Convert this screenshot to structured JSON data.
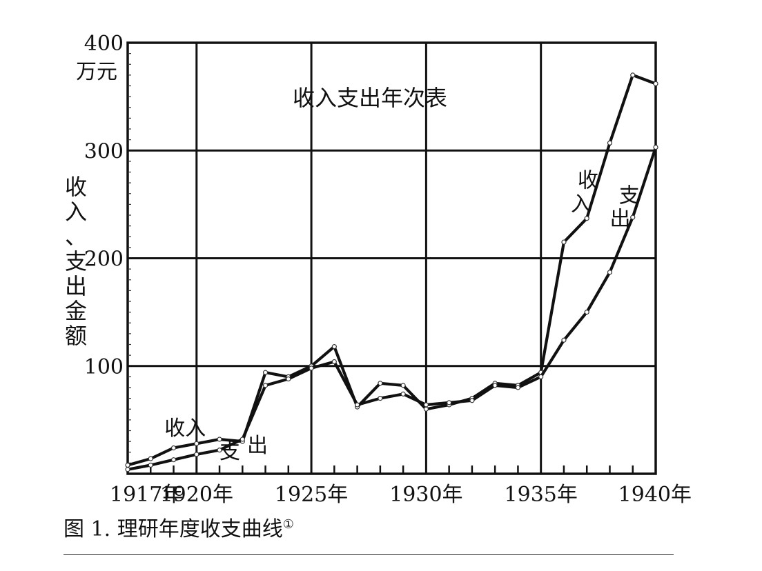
{
  "caption": {
    "prefix": "图 1.",
    "title": "理研年度收支曲线",
    "footnote": "①"
  },
  "chart_data": {
    "type": "line",
    "title": "收入支出年次表",
    "ylabel": "收入、支出金额",
    "yunit": "万元",
    "ylim": [
      0,
      400
    ],
    "y_ticks": [
      100,
      200,
      300,
      400
    ],
    "x_tick_labels": [
      "1917年",
      "1920年",
      "1925年",
      "1930年",
      "1935年",
      "1940年"
    ],
    "x_tick_values": [
      1917,
      1920,
      1925,
      1930,
      1935,
      1940
    ],
    "x_minor_ticks": [
      1918,
      1919,
      1921,
      1922,
      1923,
      1924,
      1926,
      1927,
      1928,
      1929,
      1931,
      1932,
      1933,
      1934,
      1936,
      1937,
      1938,
      1939
    ],
    "x_grid": [
      1920,
      1925,
      1930,
      1935,
      1940
    ],
    "y_grid": [
      100,
      200,
      300
    ],
    "xlim": [
      1917,
      1940
    ],
    "grid": true,
    "series": [
      {
        "name": "收入",
        "x": [
          1917,
          1918,
          1919,
          1920,
          1921,
          1922,
          1923,
          1924,
          1925,
          1926,
          1927,
          1928,
          1929,
          1930,
          1931,
          1932,
          1933,
          1934,
          1935,
          1936,
          1937,
          1938,
          1939,
          1940
        ],
        "values": [
          8,
          14,
          24,
          28,
          32,
          30,
          94,
          90,
          100,
          118,
          62,
          84,
          82,
          60,
          64,
          70,
          84,
          82,
          94,
          215,
          237,
          307,
          370,
          362
        ]
      },
      {
        "name": "支出",
        "x": [
          1917,
          1918,
          1919,
          1920,
          1921,
          1922,
          1923,
          1924,
          1925,
          1926,
          1927,
          1928,
          1929,
          1930,
          1931,
          1932,
          1933,
          1934,
          1935,
          1936,
          1937,
          1938,
          1939,
          1940
        ],
        "values": [
          4,
          8,
          13,
          18,
          22,
          32,
          82,
          88,
          98,
          104,
          64,
          70,
          74,
          64,
          66,
          68,
          82,
          80,
          90,
          124,
          150,
          187,
          238,
          303
        ]
      }
    ],
    "annotations": [
      {
        "text": "收入",
        "x": 1918.6,
        "y": 36,
        "orientation": "horizontal"
      },
      {
        "text": "支",
        "x": 1921.0,
        "y": 14,
        "orientation": "horizontal"
      },
      {
        "text": "出",
        "x": 1922.2,
        "y": 20,
        "orientation": "horizontal"
      },
      {
        "text": "收",
        "x": 1936.6,
        "y": 266,
        "orientation": "horizontal"
      },
      {
        "text": "入",
        "x": 1936.3,
        "y": 244,
        "orientation": "horizontal"
      },
      {
        "text": "支",
        "x": 1938.4,
        "y": 252,
        "orientation": "horizontal"
      },
      {
        "text": "出",
        "x": 1938.0,
        "y": 230,
        "orientation": "horizontal"
      }
    ]
  }
}
